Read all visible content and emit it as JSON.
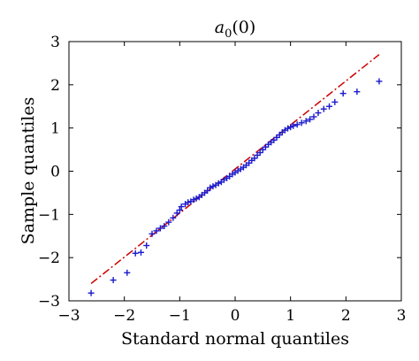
{
  "chart_data": {
    "type": "scatter",
    "title_main": "a",
    "title_sub": "0",
    "title_rest": "(0)",
    "xlabel": "Standard normal quantiles",
    "ylabel": "Sample quantiles",
    "xlim": [
      -3,
      3
    ],
    "ylim": [
      -3,
      3
    ],
    "xticks": [
      "−3",
      "−2",
      "−1",
      "0",
      "1",
      "2",
      "3"
    ],
    "yticks": [
      "−3",
      "−2",
      "−1",
      "0",
      "1",
      "2",
      "3"
    ],
    "grid": false,
    "reference_line": {
      "x": [
        -2.6,
        2.6
      ],
      "y": [
        -2.6,
        2.7
      ],
      "color": "#cc0000",
      "style": "dash-dot"
    },
    "marker_color": "#1a1acc",
    "points": [
      [
        -2.6,
        -2.82
      ],
      [
        -2.2,
        -2.52
      ],
      [
        -1.95,
        -2.35
      ],
      [
        -1.8,
        -1.9
      ],
      [
        -1.7,
        -1.88
      ],
      [
        -1.6,
        -1.72
      ],
      [
        -1.5,
        -1.45
      ],
      [
        -1.42,
        -1.38
      ],
      [
        -1.35,
        -1.32
      ],
      [
        -1.28,
        -1.27
      ],
      [
        -1.2,
        -1.18
      ],
      [
        -1.12,
        -1.08
      ],
      [
        -1.05,
        -0.97
      ],
      [
        -1.0,
        -0.9
      ],
      [
        -0.97,
        -0.82
      ],
      [
        -0.9,
        -0.76
      ],
      [
        -0.85,
        -0.72
      ],
      [
        -0.8,
        -0.7
      ],
      [
        -0.75,
        -0.66
      ],
      [
        -0.7,
        -0.63
      ],
      [
        -0.65,
        -0.6
      ],
      [
        -0.6,
        -0.55
      ],
      [
        -0.55,
        -0.5
      ],
      [
        -0.5,
        -0.45
      ],
      [
        -0.45,
        -0.38
      ],
      [
        -0.4,
        -0.35
      ],
      [
        -0.35,
        -0.32
      ],
      [
        -0.3,
        -0.28
      ],
      [
        -0.25,
        -0.25
      ],
      [
        -0.2,
        -0.2
      ],
      [
        -0.15,
        -0.16
      ],
      [
        -0.1,
        -0.12
      ],
      [
        -0.05,
        -0.07
      ],
      [
        0.0,
        -0.03
      ],
      [
        0.05,
        0.01
      ],
      [
        0.1,
        0.05
      ],
      [
        0.15,
        0.09
      ],
      [
        0.2,
        0.14
      ],
      [
        0.25,
        0.19
      ],
      [
        0.3,
        0.25
      ],
      [
        0.35,
        0.3
      ],
      [
        0.4,
        0.37
      ],
      [
        0.45,
        0.43
      ],
      [
        0.5,
        0.5
      ],
      [
        0.55,
        0.56
      ],
      [
        0.6,
        0.62
      ],
      [
        0.65,
        0.67
      ],
      [
        0.7,
        0.72
      ],
      [
        0.75,
        0.78
      ],
      [
        0.8,
        0.84
      ],
      [
        0.85,
        0.9
      ],
      [
        0.9,
        0.95
      ],
      [
        0.95,
        0.99
      ],
      [
        1.0,
        1.02
      ],
      [
        1.05,
        1.05
      ],
      [
        1.12,
        1.08
      ],
      [
        1.2,
        1.12
      ],
      [
        1.28,
        1.16
      ],
      [
        1.35,
        1.2
      ],
      [
        1.42,
        1.26
      ],
      [
        1.5,
        1.35
      ],
      [
        1.6,
        1.44
      ],
      [
        1.7,
        1.5
      ],
      [
        1.8,
        1.6
      ],
      [
        1.95,
        1.8
      ],
      [
        2.2,
        1.84
      ],
      [
        2.6,
        2.08
      ]
    ]
  }
}
